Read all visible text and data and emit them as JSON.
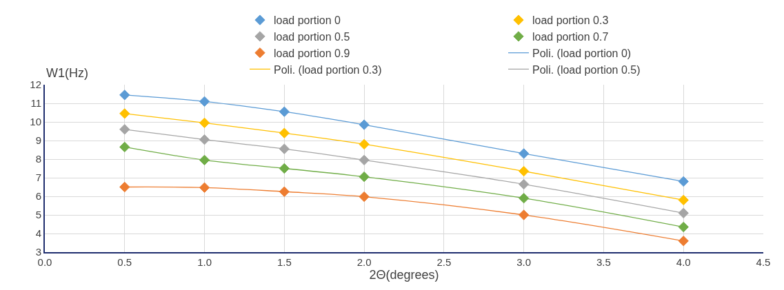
{
  "chart_data": {
    "type": "scatter",
    "xlabel": "2Θ(degrees)",
    "ylabel": "W1(Hz)",
    "x": [
      0.5,
      1,
      1.5,
      2,
      3,
      4
    ],
    "series": [
      {
        "name": "load portion 0",
        "color": "#5b9bd5",
        "values": [
          11.45,
          11.1,
          10.55,
          9.85,
          8.3,
          6.8
        ]
      },
      {
        "name": "load portion 0.3",
        "color": "#ffc000",
        "values": [
          10.45,
          9.95,
          9.4,
          8.8,
          7.35,
          5.8
        ]
      },
      {
        "name": "load portion 0.5",
        "color": "#a5a5a5",
        "values": [
          9.6,
          9.05,
          8.55,
          7.95,
          6.65,
          5.1
        ]
      },
      {
        "name": "load portion 0.7",
        "color": "#70ad47",
        "values": [
          8.65,
          7.95,
          7.5,
          7.05,
          5.9,
          4.35
        ]
      },
      {
        "name": "load portion 0.9",
        "color": "#ed7d31",
        "values": [
          6.5,
          6.47,
          6.25,
          5.98,
          5.0,
          3.6
        ]
      },
      {
        "name": "Poli. (load portion 0)",
        "type": "line",
        "marker": "none",
        "color": "#5b9bd5",
        "values": [
          11.45,
          11.1,
          10.55,
          9.85,
          8.3,
          6.8
        ]
      },
      {
        "name": "Poli. (load portion 0.3)",
        "type": "line",
        "marker": "none",
        "color": "#ffc000",
        "values": [
          10.45,
          9.95,
          9.4,
          8.8,
          7.35,
          5.8
        ]
      },
      {
        "name": "Poli. (load portion 0.5)",
        "type": "line",
        "marker": "none",
        "color": "#a5a5a5",
        "values": [
          9.6,
          9.05,
          8.55,
          7.95,
          6.65,
          5.1
        ]
      },
      {
        "type": "line",
        "marker": "none",
        "color": "#70ad47",
        "values": [
          8.65,
          7.95,
          7.5,
          7.05,
          5.9,
          4.35
        ]
      },
      {
        "type": "line",
        "marker": "none",
        "color": "#ed7d31",
        "values": [
          6.5,
          6.47,
          6.25,
          5.98,
          5.0,
          3.6
        ]
      }
    ],
    "xlim": [
      0,
      4.5
    ],
    "xticks": [
      {
        "value": 0,
        "label": "0.0"
      },
      0.5,
      {
        "value": 1,
        "label": "1.0"
      },
      1.5,
      {
        "value": 2,
        "label": "2.0"
      },
      2.5,
      {
        "value": 3,
        "label": "3.0"
      },
      3.5,
      {
        "value": 4,
        "label": "4.0"
      },
      4.5
    ],
    "ylim": [
      3,
      12
    ],
    "yticks": [
      3,
      4,
      5,
      6,
      7,
      8,
      9,
      10,
      11,
      12
    ],
    "grid": true,
    "legend": "top right",
    "marker": "diamond",
    "line_style": "solid"
  }
}
